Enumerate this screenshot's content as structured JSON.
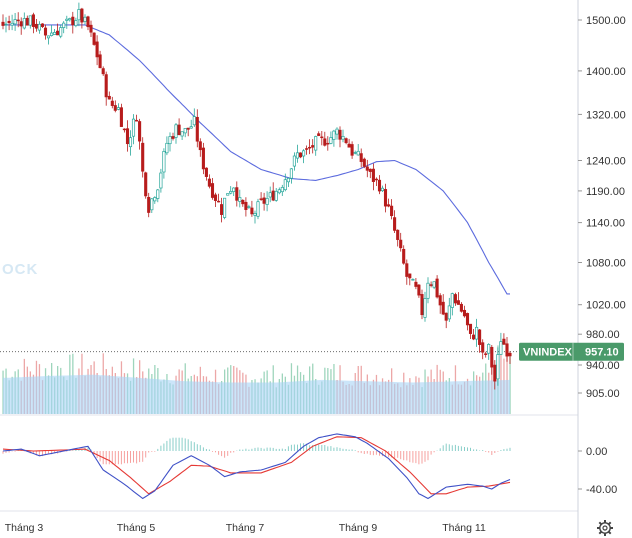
{
  "chart_data": {
    "type": "candlestick",
    "symbol": "VNINDEX",
    "last_value_label": "957.10",
    "price_axis": {
      "ticks": [
        {
          "label": "1500.00",
          "value": 1500
        },
        {
          "label": "1400.00",
          "value": 1400
        },
        {
          "label": "1320.00",
          "value": 1320
        },
        {
          "label": "1240.00",
          "value": 1240
        },
        {
          "label": "1190.00",
          "value": 1190
        },
        {
          "label": "1140.00",
          "value": 1140
        },
        {
          "label": "1080.00",
          "value": 1080
        },
        {
          "label": "1020.00",
          "value": 1020
        },
        {
          "label": "980.00",
          "value": 980
        },
        {
          "label": "940.00",
          "value": 940
        },
        {
          "label": "905.00",
          "value": 905
        }
      ],
      "scale": "log"
    },
    "macd_axis": {
      "ticks": [
        {
          "label": "0.00",
          "value": 0
        },
        {
          "label": "-40.00",
          "value": -40
        }
      ],
      "range": [
        -60,
        25
      ]
    },
    "time_axis": [
      "Tháng 3",
      "Tháng 5",
      "Tháng 7",
      "Tháng 9",
      "Tháng 11"
    ],
    "price_keypoints": [
      {
        "i": 0,
        "v": 1490
      },
      {
        "i": 6,
        "v": 1500
      },
      {
        "i": 10,
        "v": 1495
      },
      {
        "i": 14,
        "v": 1470
      },
      {
        "i": 18,
        "v": 1480
      },
      {
        "i": 22,
        "v": 1495
      },
      {
        "i": 25,
        "v": 1510
      },
      {
        "i": 28,
        "v": 1485
      },
      {
        "i": 31,
        "v": 1430
      },
      {
        "i": 35,
        "v": 1340
      },
      {
        "i": 38,
        "v": 1330
      },
      {
        "i": 41,
        "v": 1270
      },
      {
        "i": 44,
        "v": 1320
      },
      {
        "i": 46,
        "v": 1220
      },
      {
        "i": 48,
        "v": 1165
      },
      {
        "i": 51,
        "v": 1200
      },
      {
        "i": 54,
        "v": 1270
      },
      {
        "i": 57,
        "v": 1295
      },
      {
        "i": 60,
        "v": 1290
      },
      {
        "i": 63,
        "v": 1305
      },
      {
        "i": 65,
        "v": 1250
      },
      {
        "i": 68,
        "v": 1200
      },
      {
        "i": 70,
        "v": 1180
      },
      {
        "i": 72,
        "v": 1160
      },
      {
        "i": 74,
        "v": 1190
      },
      {
        "i": 76,
        "v": 1200
      },
      {
        "i": 78,
        "v": 1170
      },
      {
        "i": 80,
        "v": 1160
      },
      {
        "i": 82,
        "v": 1150
      },
      {
        "i": 85,
        "v": 1170
      },
      {
        "i": 88,
        "v": 1180
      },
      {
        "i": 91,
        "v": 1195
      },
      {
        "i": 94,
        "v": 1220
      },
      {
        "i": 97,
        "v": 1250
      },
      {
        "i": 100,
        "v": 1255
      },
      {
        "i": 103,
        "v": 1270
      },
      {
        "i": 106,
        "v": 1275
      },
      {
        "i": 108,
        "v": 1280
      },
      {
        "i": 110,
        "v": 1290
      },
      {
        "i": 113,
        "v": 1275
      },
      {
        "i": 115,
        "v": 1255
      },
      {
        "i": 118,
        "v": 1240
      },
      {
        "i": 121,
        "v": 1215
      },
      {
        "i": 124,
        "v": 1200
      },
      {
        "i": 127,
        "v": 1160
      },
      {
        "i": 130,
        "v": 1110
      },
      {
        "i": 133,
        "v": 1060
      },
      {
        "i": 136,
        "v": 1040
      },
      {
        "i": 138,
        "v": 1010
      },
      {
        "i": 140,
        "v": 1055
      },
      {
        "i": 142,
        "v": 1050
      },
      {
        "i": 144,
        "v": 1020
      },
      {
        "i": 146,
        "v": 995
      },
      {
        "i": 148,
        "v": 1035
      },
      {
        "i": 150,
        "v": 1020
      },
      {
        "i": 152,
        "v": 1005
      },
      {
        "i": 154,
        "v": 975
      },
      {
        "i": 156,
        "v": 985
      },
      {
        "i": 158,
        "v": 950
      },
      {
        "i": 160,
        "v": 960
      },
      {
        "i": 162,
        "v": 920
      },
      {
        "i": 164,
        "v": 975
      },
      {
        "i": 166,
        "v": 960
      },
      {
        "i": 167,
        "v": 957
      }
    ],
    "ma_keypoints": [
      {
        "i": 0,
        "v": 1490
      },
      {
        "i": 15,
        "v": 1490
      },
      {
        "i": 27,
        "v": 1490
      },
      {
        "i": 35,
        "v": 1470
      },
      {
        "i": 45,
        "v": 1420
      },
      {
        "i": 55,
        "v": 1360
      },
      {
        "i": 65,
        "v": 1305
      },
      {
        "i": 75,
        "v": 1255
      },
      {
        "i": 85,
        "v": 1225
      },
      {
        "i": 95,
        "v": 1210
      },
      {
        "i": 103,
        "v": 1207
      },
      {
        "i": 110,
        "v": 1215
      },
      {
        "i": 117,
        "v": 1225
      },
      {
        "i": 123,
        "v": 1238
      },
      {
        "i": 129,
        "v": 1240
      },
      {
        "i": 136,
        "v": 1225
      },
      {
        "i": 145,
        "v": 1190
      },
      {
        "i": 153,
        "v": 1140
      },
      {
        "i": 160,
        "v": 1080
      },
      {
        "i": 166,
        "v": 1035
      }
    ],
    "macd_keypoints": [
      {
        "i": 0,
        "v": 0
      },
      {
        "i": 6,
        "v": 2
      },
      {
        "i": 12,
        "v": -5
      },
      {
        "i": 20,
        "v": 0
      },
      {
        "i": 28,
        "v": 5
      },
      {
        "i": 33,
        "v": -20
      },
      {
        "i": 40,
        "v": -35
      },
      {
        "i": 46,
        "v": -50
      },
      {
        "i": 50,
        "v": -42
      },
      {
        "i": 56,
        "v": -15
      },
      {
        "i": 62,
        "v": -5
      },
      {
        "i": 68,
        "v": -15
      },
      {
        "i": 73,
        "v": -27
      },
      {
        "i": 78,
        "v": -22
      },
      {
        "i": 85,
        "v": -20
      },
      {
        "i": 93,
        "v": -12
      },
      {
        "i": 99,
        "v": 5
      },
      {
        "i": 104,
        "v": 14
      },
      {
        "i": 110,
        "v": 18
      },
      {
        "i": 116,
        "v": 15
      },
      {
        "i": 120,
        "v": 8
      },
      {
        "i": 127,
        "v": -8
      },
      {
        "i": 133,
        "v": -28
      },
      {
        "i": 137,
        "v": -45
      },
      {
        "i": 140,
        "v": -50
      },
      {
        "i": 146,
        "v": -38
      },
      {
        "i": 153,
        "v": -35
      },
      {
        "i": 158,
        "v": -37
      },
      {
        "i": 161,
        "v": -40
      },
      {
        "i": 164,
        "v": -34
      },
      {
        "i": 167,
        "v": -30
      }
    ],
    "signal_keypoints": [
      {
        "i": 0,
        "v": 2
      },
      {
        "i": 10,
        "v": 0
      },
      {
        "i": 20,
        "v": 1
      },
      {
        "i": 27,
        "v": 2
      },
      {
        "i": 35,
        "v": -10
      },
      {
        "i": 42,
        "v": -28
      },
      {
        "i": 48,
        "v": -45
      },
      {
        "i": 55,
        "v": -32
      },
      {
        "i": 62,
        "v": -15
      },
      {
        "i": 68,
        "v": -16
      },
      {
        "i": 75,
        "v": -23
      },
      {
        "i": 85,
        "v": -23
      },
      {
        "i": 95,
        "v": -12
      },
      {
        "i": 102,
        "v": 5
      },
      {
        "i": 110,
        "v": 15
      },
      {
        "i": 118,
        "v": 14
      },
      {
        "i": 126,
        "v": 0
      },
      {
        "i": 134,
        "v": -22
      },
      {
        "i": 141,
        "v": -45
      },
      {
        "i": 146,
        "v": -45
      },
      {
        "i": 153,
        "v": -38
      },
      {
        "i": 160,
        "v": -37
      },
      {
        "i": 167,
        "v": -33
      }
    ],
    "volume_avg_keypoints": [
      {
        "i": 0,
        "v": 0.55
      },
      {
        "i": 15,
        "v": 0.58
      },
      {
        "i": 30,
        "v": 0.6
      },
      {
        "i": 45,
        "v": 0.55
      },
      {
        "i": 60,
        "v": 0.5
      },
      {
        "i": 75,
        "v": 0.48
      },
      {
        "i": 90,
        "v": 0.48
      },
      {
        "i": 105,
        "v": 0.52
      },
      {
        "i": 120,
        "v": 0.5
      },
      {
        "i": 135,
        "v": 0.48
      },
      {
        "i": 150,
        "v": 0.5
      },
      {
        "i": 167,
        "v": 0.52
      }
    ],
    "watermark": "OCK",
    "colors": {
      "up": "#26a69a",
      "down": "#b71c1c",
      "ma": "#5c6bde",
      "macd": "#3f51c7",
      "signal": "#e53935",
      "volume_area": "#a8d4f5",
      "badge": "#4a9a6a"
    }
  }
}
